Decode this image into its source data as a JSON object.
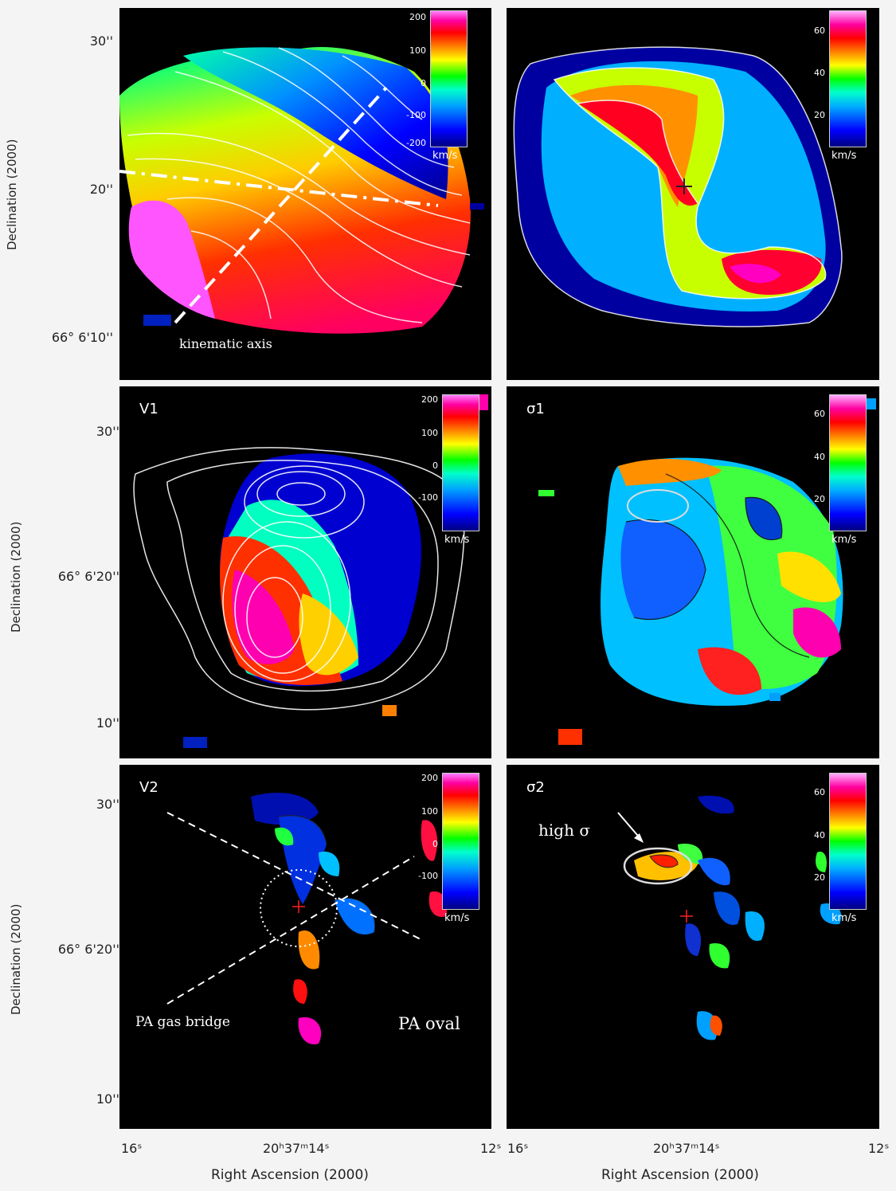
{
  "chart_data": [
    {
      "type": "heatmap",
      "panel": "top-left",
      "title": "",
      "ylabel": "Declination (2000)",
      "yticks": [
        "30''",
        "20''",
        "66° 6'10''"
      ],
      "colorbar": {
        "ticks": [
          "200",
          "100",
          "0",
          "-100",
          "-200"
        ],
        "unit": "km/s",
        "range": [
          -200,
          200
        ]
      },
      "annotations": [
        "bar",
        "kinematic axis"
      ]
    },
    {
      "type": "heatmap",
      "panel": "top-right",
      "title": "",
      "colorbar": {
        "ticks": [
          "60",
          "40",
          "20"
        ],
        "unit": "km/s",
        "range": [
          0,
          70
        ]
      }
    },
    {
      "type": "heatmap",
      "panel": "middle-left",
      "title": "V1",
      "ylabel": "Declination (2000)",
      "yticks": [
        "30''",
        "66° 6'20''",
        "10''"
      ],
      "colorbar": {
        "ticks": [
          "200",
          "100",
          "0",
          "-100"
        ],
        "unit": "km/s",
        "range": [
          -200,
          200
        ]
      }
    },
    {
      "type": "heatmap",
      "panel": "middle-right",
      "title": "σ1",
      "colorbar": {
        "ticks": [
          "60",
          "40",
          "20"
        ],
        "unit": "km/s",
        "range": [
          0,
          70
        ]
      }
    },
    {
      "type": "heatmap",
      "panel": "bottom-left",
      "title": "V2",
      "ylabel": "Declination (2000)",
      "yticks": [
        "30''",
        "66° 6'20''",
        "10''"
      ],
      "xlabel": "Right Ascension (2000)",
      "xticks": [
        "16ˢ",
        "20ʰ37ᵐ14ˢ",
        "12ˢ"
      ],
      "colorbar": {
        "ticks": [
          "200",
          "100",
          "0",
          "-100"
        ],
        "unit": "km/s",
        "range": [
          -200,
          200
        ]
      },
      "annotations": [
        "PA gas bridge",
        "PA oval"
      ]
    },
    {
      "type": "heatmap",
      "panel": "bottom-right",
      "title": "σ2",
      "xlabel": "Right Ascension (2000)",
      "xticks": [
        "16ˢ",
        "20ʰ37ᵐ14ˢ",
        "12ˢ"
      ],
      "colorbar": {
        "ticks": [
          "60",
          "40",
          "20"
        ],
        "unit": "km/s",
        "range": [
          0,
          70
        ]
      },
      "annotations": [
        "high σ"
      ]
    }
  ]
}
